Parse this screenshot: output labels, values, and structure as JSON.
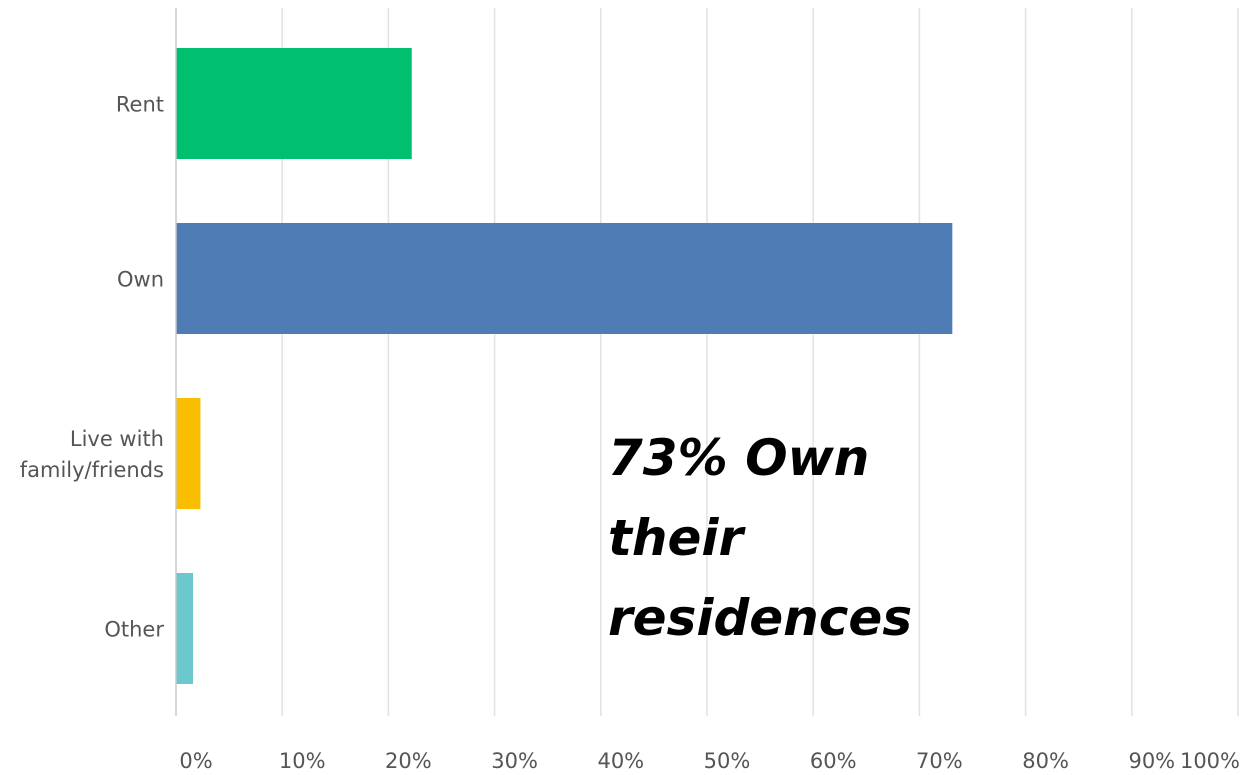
{
  "chart_data": {
    "type": "bar",
    "orientation": "horizontal",
    "categories": [
      "Rent",
      "Own",
      "Live with family/friends",
      "Other"
    ],
    "category_lines": [
      [
        "Rent"
      ],
      [
        "Own"
      ],
      [
        "Live with",
        "family/friends"
      ],
      [
        "Other"
      ]
    ],
    "values": [
      22.2,
      73.1,
      2.3,
      1.6
    ],
    "colors": [
      "#00bf6f",
      "#507cb6",
      "#f9be00",
      "#6bc8cd"
    ],
    "xlim": [
      0,
      100
    ],
    "xticks": [
      "0%",
      "10%",
      "20%",
      "30%",
      "40%",
      "50%",
      "60%",
      "70%",
      "80%",
      "90%",
      "100%"
    ],
    "grid": true,
    "annotation": [
      "73% Own",
      "their",
      "residences"
    ]
  }
}
